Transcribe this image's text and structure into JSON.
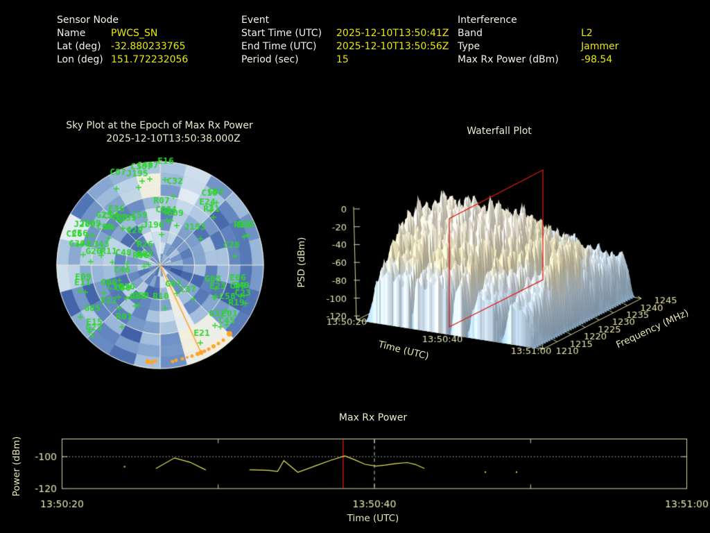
{
  "header": {
    "sensor": {
      "title": "Sensor Node",
      "rows": [
        {
          "label": "Name",
          "value": "PWCS_SN"
        },
        {
          "label": "Lat (deg)",
          "value": "-32.880233765"
        },
        {
          "label": "Lon (deg)",
          "value": "151.772232056"
        }
      ]
    },
    "event": {
      "title": "Event",
      "rows": [
        {
          "label": "Start Time (UTC)",
          "value": "2025-12-10T13:50:41Z"
        },
        {
          "label": "End Time (UTC)",
          "value": "2025-12-10T13:50:56Z"
        },
        {
          "label": "Period (sec)",
          "value": "15"
        }
      ]
    },
    "interference": {
      "title": "Interference",
      "rows": [
        {
          "label": "Band",
          "value": "L2"
        },
        {
          "label": "Type",
          "value": "Jammer"
        },
        {
          "label": "Max Rx Power (dBm)",
          "value": "-98.54"
        }
      ]
    }
  },
  "colors": {
    "value_yellow": "#e9e900",
    "label_white": "#f2f2e6",
    "pale_tick": "#e6e6b4",
    "title_cream": "#ebebcd",
    "sat_green": "#2fd42f",
    "trajectory_orange": "#ffa428",
    "grid_cream": "#f5f1d8",
    "marker_red": "#e01818",
    "data_yellow": "#e6e65a"
  },
  "chart_data": [
    {
      "type": "heatmap",
      "name": "sky_plot",
      "title": "Sky Plot at the Epoch of Max Rx Power",
      "subtitle": "2025-12-10T13:50:38.000Z",
      "projection": "polar",
      "elevation_rings": 9,
      "azimuth_sectors": 24,
      "grid_circles_elevation_deg": [
        0,
        30,
        60
      ],
      "grid_spokes_deg": 45,
      "palette": [
        "#31519b",
        "#5d80bd",
        "#8fafd5",
        "#c2d6e8",
        "#e4edf5",
        "#f5efd9"
      ],
      "column_shade": [
        0.55,
        0.65,
        0.5,
        0.42,
        0.45,
        0.5,
        0.38,
        0.3,
        0.45,
        0.6,
        0.8,
        0.55,
        0.4,
        0.3,
        0.45,
        0.5,
        0.35,
        0.6,
        0.5,
        0.65,
        0.42,
        0.38,
        0.62,
        0.78
      ],
      "satellites": [
        [
          "C307",
          204,
          244,
          205,
          261
        ],
        [
          "C407",
          213,
          242,
          216,
          258
        ],
        [
          "E16",
          239,
          236,
          238,
          259
        ],
        [
          "C07",
          170,
          252,
          168,
          272
        ],
        [
          "J195",
          198,
          254,
          200,
          270
        ],
        [
          "C32",
          252,
          265,
          250,
          283
        ],
        [
          "R07",
          233,
          293,
          239,
          307
        ],
        [
          "C10",
          302,
          282,
          305,
          295
        ],
        [
          "G02",
          311,
          280,
          312,
          292
        ],
        [
          "E24",
          299,
          295,
          304,
          303
        ],
        [
          "R31",
          305,
          305,
          308,
          313
        ],
        [
          "R25",
          349,
          328,
          352,
          341
        ],
        [
          "R26",
          355,
          327,
          357,
          339
        ],
        [
          "C28",
          334,
          357,
          339,
          369
        ],
        [
          "J193",
          281,
          331,
          289,
          344
        ],
        [
          "G09",
          253,
          311,
          255,
          325
        ],
        [
          "C04",
          243,
          306,
          246,
          318
        ],
        [
          "C01",
          236,
          306,
          241,
          317
        ],
        [
          "C59",
          201,
          314,
          205,
          327
        ],
        [
          "J199",
          181,
          318,
          186,
          330
        ],
        [
          "C09",
          172,
          317,
          177,
          329
        ],
        [
          "E36",
          168,
          305,
          173,
          319
        ],
        [
          "G25",
          150,
          314,
          155,
          327
        ],
        [
          "C54",
          160,
          315,
          163,
          328
        ],
        [
          "J196",
          221,
          328,
          233,
          338
        ],
        [
          "C20",
          194,
          336,
          198,
          348
        ],
        [
          "C08",
          151,
          331,
          157,
          343
        ],
        [
          "J200",
          122,
          327,
          127,
          340
        ],
        [
          "J209",
          130,
          326,
          134,
          339
        ],
        [
          "C26",
          107,
          341,
          112,
          353
        ],
        [
          "C56",
          115,
          340,
          119,
          352
        ],
        [
          "G302",
          115,
          355,
          120,
          367
        ],
        [
          "E343",
          142,
          356,
          146,
          368
        ],
        [
          "G20",
          135,
          366,
          131,
          377
        ],
        [
          "R11",
          157,
          366,
          162,
          378
        ],
        [
          "C48",
          178,
          368,
          183,
          380
        ],
        [
          "R06",
          203,
          372,
          208,
          384
        ],
        [
          "R08",
          209,
          370,
          214,
          381
        ],
        [
          "R26",
          209,
          356,
          204,
          368
        ],
        [
          "C46",
          176,
          393,
          172,
          404
        ],
        [
          "E09",
          120,
          403,
          115,
          419
        ],
        [
          "E11",
          119,
          411,
          123,
          421
        ],
        [
          "G06",
          157,
          411,
          150,
          422
        ],
        [
          "C16",
          166,
          417,
          171,
          428
        ],
        [
          "C30",
          177,
          419,
          182,
          430
        ],
        [
          "G30",
          183,
          417,
          188,
          428
        ],
        [
          "C50",
          199,
          431,
          195,
          441
        ],
        [
          "G50",
          203,
          430,
          199,
          440
        ],
        [
          "E22",
          157,
          437,
          172,
          444
        ],
        [
          "G05",
          133,
          448,
          116,
          457
        ],
        [
          "R01",
          179,
          460,
          176,
          471
        ],
        [
          "E15",
          136,
          468,
          129,
          478
        ],
        [
          "G23",
          135,
          476,
          133,
          484
        ],
        [
          "G07",
          250,
          413,
          255,
          423
        ],
        [
          "C37",
          271,
          421,
          279,
          431
        ],
        [
          "R10",
          232,
          431,
          238,
          444
        ],
        [
          "E06",
          343,
          404,
          341,
          414
        ],
        [
          "G08",
          307,
          406,
          311,
          416
        ],
        [
          "E23",
          314,
          416,
          311,
          427
        ],
        [
          "C49",
          343,
          416,
          347,
          427
        ],
        [
          "G49",
          348,
          415,
          352,
          426
        ],
        [
          "C23",
          350,
          426,
          354,
          437
        ],
        [
          "C58",
          328,
          431,
          309,
          429
        ],
        [
          "R19",
          341,
          440,
          326,
          448
        ],
        [
          "G31",
          313,
          456,
          310,
          469
        ],
        [
          "E01",
          331,
          456,
          327,
          468
        ],
        [
          "C45",
          327,
          466,
          318,
          471
        ],
        [
          "E21",
          291,
          484,
          289,
          494
        ]
      ],
      "trajectory": {
        "line": [
          [
            231,
            382
          ],
          [
            290,
            508
          ]
        ],
        "dots": [
          [
            213,
            521,
            3.5
          ],
          [
            219,
            522,
            3
          ],
          [
            224,
            520,
            2.5
          ],
          [
            249,
            521,
            2.5
          ],
          [
            254,
            519,
            2.5
          ],
          [
            263,
            517,
            2.5
          ],
          [
            270,
            515,
            2
          ],
          [
            277,
            513,
            2.5
          ],
          [
            285,
            510,
            3
          ],
          [
            290,
            508,
            3.5
          ],
          [
            295,
            506,
            2.5
          ],
          [
            301,
            503,
            2.5
          ],
          [
            308,
            499,
            3
          ],
          [
            315,
            495,
            2.5
          ],
          [
            322,
            490,
            2.5
          ],
          [
            331,
            481,
            4
          ]
        ]
      }
    },
    {
      "type": "area",
      "name": "waterfall_3d_surface",
      "title": "Waterfall Plot",
      "zlabel": "PSD (dBm)",
      "xlabel": "Time (UTC)",
      "ylabel": "Frequency (MHz)",
      "psd_ticks": [
        "0",
        "-20",
        "-40",
        "-60",
        "-80",
        "-100",
        "-120"
      ],
      "psd_range": [
        0,
        -120
      ],
      "time_ticks": [
        "13:50:20",
        "13:50:40",
        "13:51:00"
      ],
      "time_range_sec": [
        20,
        60
      ],
      "freq_ticks": [
        "1210",
        "1215",
        "1220",
        "1225",
        "1230",
        "1235",
        "1240",
        "1245"
      ],
      "freq_range_mhz": [
        1210,
        1245
      ],
      "slice_marker": {
        "color": "#e01818",
        "time": "13:50:38"
      }
    },
    {
      "type": "line",
      "name": "max_rx_power",
      "title": "Max Rx Power",
      "xlabel": "Time (UTC)",
      "ylabel": "Power (dBm)",
      "x_ticks": [
        "13:50:20",
        "13:50:40",
        "13:51:00"
      ],
      "x_minor_ticks_sec": [
        20,
        30,
        40,
        50,
        60
      ],
      "y_ticks": [
        "-100",
        "-120"
      ],
      "xlim_sec": [
        20,
        60
      ],
      "threshold_dbm": -100,
      "epoch_line_sec": 38,
      "event_line_sec": 40,
      "segments": [
        [
          [
            26.0,
            -107.5
          ],
          [
            27.2,
            -100.8
          ],
          [
            28.2,
            -103.5
          ],
          [
            29.2,
            -108.3
          ]
        ],
        [
          [
            32.0,
            -108.2
          ],
          [
            33.2,
            -108.5
          ],
          [
            33.8,
            -109.3
          ],
          [
            34.2,
            -102.5
          ],
          [
            35.1,
            -109.8
          ],
          [
            36.3,
            -105.5
          ],
          [
            37.2,
            -102.3
          ],
          [
            38.1,
            -99.5
          ],
          [
            38.7,
            -101.8
          ],
          [
            39.4,
            -104.8
          ],
          [
            40.1,
            -105.9
          ],
          [
            40.7,
            -105.3
          ],
          [
            41.4,
            -104.3
          ],
          [
            42.1,
            -103.7
          ],
          [
            42.6,
            -104.8
          ],
          [
            43.2,
            -107.4
          ]
        ]
      ],
      "isolated_points": [
        [
          24.0,
          -106.3
        ],
        [
          47.1,
          -109.7
        ],
        [
          49.1,
          -109.7
        ]
      ]
    }
  ]
}
